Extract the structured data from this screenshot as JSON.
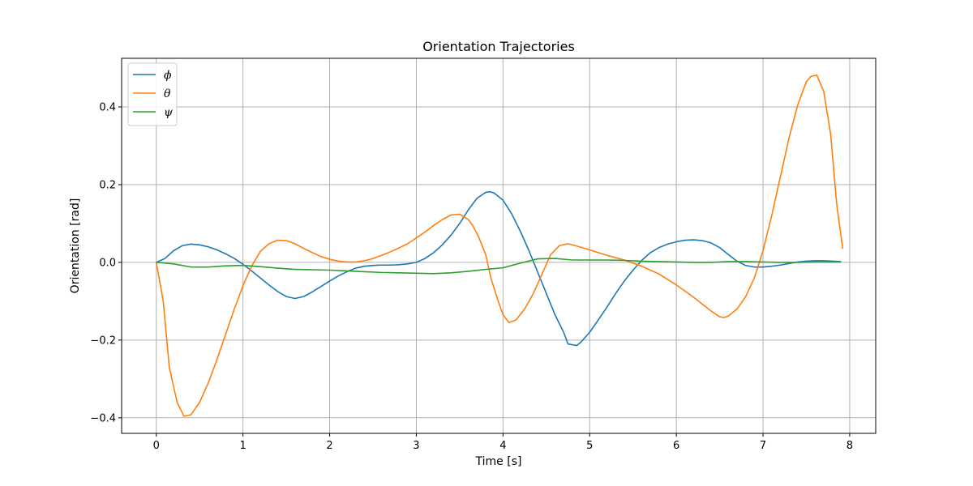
{
  "chart_data": {
    "type": "line",
    "title": "Orientation Trajectories",
    "xlabel": "Time [s]",
    "ylabel": "Orientation [rad]",
    "xlim": [
      -0.4,
      8.3
    ],
    "ylim": [
      -0.44,
      0.525
    ],
    "xticks": [
      0,
      1,
      2,
      3,
      4,
      5,
      6,
      7,
      8
    ],
    "xtick_labels": [
      "0",
      "1",
      "2",
      "3",
      "4",
      "5",
      "6",
      "7",
      "8"
    ],
    "yticks": [
      -0.4,
      -0.2,
      0.0,
      0.2,
      0.4
    ],
    "ytick_labels": [
      "−0.4",
      "−0.2",
      "0.0",
      "0.2",
      "0.4"
    ],
    "grid": true,
    "legend_position": "top-left",
    "series": [
      {
        "name": "ϕ",
        "color": "#1f77b4",
        "points": [
          [
            0,
            0
          ],
          [
            0.1,
            0.01
          ],
          [
            0.2,
            0.03
          ],
          [
            0.3,
            0.043
          ],
          [
            0.4,
            0.047
          ],
          [
            0.5,
            0.045
          ],
          [
            0.6,
            0.04
          ],
          [
            0.7,
            0.032
          ],
          [
            0.8,
            0.022
          ],
          [
            0.9,
            0.01
          ],
          [
            1.0,
            -0.005
          ],
          [
            1.1,
            -0.022
          ],
          [
            1.2,
            -0.04
          ],
          [
            1.3,
            -0.058
          ],
          [
            1.4,
            -0.075
          ],
          [
            1.5,
            -0.088
          ],
          [
            1.6,
            -0.093
          ],
          [
            1.7,
            -0.088
          ],
          [
            1.8,
            -0.076
          ],
          [
            1.9,
            -0.062
          ],
          [
            2.0,
            -0.048
          ],
          [
            2.1,
            -0.035
          ],
          [
            2.2,
            -0.024
          ],
          [
            2.3,
            -0.015
          ],
          [
            2.4,
            -0.01
          ],
          [
            2.5,
            -0.008
          ],
          [
            2.6,
            -0.007
          ],
          [
            2.7,
            -0.007
          ],
          [
            2.8,
            -0.006
          ],
          [
            2.9,
            -0.004
          ],
          [
            3.0,
            0.0
          ],
          [
            3.1,
            0.01
          ],
          [
            3.2,
            0.025
          ],
          [
            3.3,
            0.045
          ],
          [
            3.4,
            0.07
          ],
          [
            3.5,
            0.1
          ],
          [
            3.6,
            0.135
          ],
          [
            3.7,
            0.165
          ],
          [
            3.8,
            0.18
          ],
          [
            3.85,
            0.182
          ],
          [
            3.9,
            0.178
          ],
          [
            4.0,
            0.16
          ],
          [
            4.1,
            0.125
          ],
          [
            4.2,
            0.08
          ],
          [
            4.3,
            0.03
          ],
          [
            4.4,
            -0.025
          ],
          [
            4.5,
            -0.08
          ],
          [
            4.6,
            -0.135
          ],
          [
            4.7,
            -0.18
          ],
          [
            4.75,
            -0.21
          ],
          [
            4.85,
            -0.214
          ],
          [
            4.9,
            -0.205
          ],
          [
            5.0,
            -0.18
          ],
          [
            5.1,
            -0.148
          ],
          [
            5.2,
            -0.115
          ],
          [
            5.3,
            -0.08
          ],
          [
            5.4,
            -0.048
          ],
          [
            5.5,
            -0.02
          ],
          [
            5.6,
            0.005
          ],
          [
            5.7,
            0.025
          ],
          [
            5.8,
            0.038
          ],
          [
            5.9,
            0.047
          ],
          [
            6.0,
            0.053
          ],
          [
            6.1,
            0.057
          ],
          [
            6.2,
            0.058
          ],
          [
            6.3,
            0.056
          ],
          [
            6.4,
            0.05
          ],
          [
            6.5,
            0.038
          ],
          [
            6.6,
            0.02
          ],
          [
            6.7,
            0.003
          ],
          [
            6.8,
            -0.008
          ],
          [
            6.9,
            -0.012
          ],
          [
            7.0,
            -0.012
          ],
          [
            7.1,
            -0.01
          ],
          [
            7.2,
            -0.007
          ],
          [
            7.3,
            -0.003
          ],
          [
            7.4,
            0.001
          ],
          [
            7.5,
            0.003
          ],
          [
            7.6,
            0.004
          ],
          [
            7.7,
            0.004
          ],
          [
            7.8,
            0.003
          ],
          [
            7.9,
            0.002
          ]
        ]
      },
      {
        "name": "θ",
        "color": "#ff7f0e",
        "points": [
          [
            0,
            0
          ],
          [
            0.08,
            -0.1
          ],
          [
            0.15,
            -0.27
          ],
          [
            0.24,
            -0.36
          ],
          [
            0.32,
            -0.396
          ],
          [
            0.4,
            -0.392
          ],
          [
            0.5,
            -0.36
          ],
          [
            0.6,
            -0.31
          ],
          [
            0.7,
            -0.25
          ],
          [
            0.8,
            -0.185
          ],
          [
            0.9,
            -0.12
          ],
          [
            1.0,
            -0.06
          ],
          [
            1.1,
            -0.01
          ],
          [
            1.2,
            0.028
          ],
          [
            1.3,
            0.048
          ],
          [
            1.4,
            0.057
          ],
          [
            1.5,
            0.056
          ],
          [
            1.6,
            0.048
          ],
          [
            1.7,
            0.036
          ],
          [
            1.8,
            0.025
          ],
          [
            1.9,
            0.015
          ],
          [
            2.0,
            0.008
          ],
          [
            2.1,
            0.003
          ],
          [
            2.2,
            0.001
          ],
          [
            2.3,
            0.001
          ],
          [
            2.4,
            0.004
          ],
          [
            2.5,
            0.01
          ],
          [
            2.6,
            0.018
          ],
          [
            2.7,
            0.027
          ],
          [
            2.8,
            0.037
          ],
          [
            2.9,
            0.048
          ],
          [
            3.0,
            0.063
          ],
          [
            3.1,
            0.078
          ],
          [
            3.2,
            0.095
          ],
          [
            3.3,
            0.11
          ],
          [
            3.4,
            0.122
          ],
          [
            3.5,
            0.124
          ],
          [
            3.6,
            0.11
          ],
          [
            3.65,
            0.095
          ],
          [
            3.72,
            0.065
          ],
          [
            3.8,
            0.02
          ],
          [
            3.86,
            -0.04
          ],
          [
            3.93,
            -0.09
          ],
          [
            4.0,
            -0.135
          ],
          [
            4.07,
            -0.155
          ],
          [
            4.15,
            -0.148
          ],
          [
            4.25,
            -0.12
          ],
          [
            4.35,
            -0.08
          ],
          [
            4.45,
            -0.03
          ],
          [
            4.55,
            0.02
          ],
          [
            4.65,
            0.043
          ],
          [
            4.75,
            0.048
          ],
          [
            4.85,
            0.042
          ],
          [
            5.0,
            0.032
          ],
          [
            5.2,
            0.018
          ],
          [
            5.4,
            0.006
          ],
          [
            5.6,
            -0.01
          ],
          [
            5.8,
            -0.03
          ],
          [
            6.0,
            -0.058
          ],
          [
            6.2,
            -0.09
          ],
          [
            6.4,
            -0.125
          ],
          [
            6.5,
            -0.14
          ],
          [
            6.55,
            -0.142
          ],
          [
            6.6,
            -0.138
          ],
          [
            6.7,
            -0.12
          ],
          [
            6.8,
            -0.088
          ],
          [
            6.9,
            -0.04
          ],
          [
            7.0,
            0.03
          ],
          [
            7.1,
            0.12
          ],
          [
            7.2,
            0.22
          ],
          [
            7.3,
            0.32
          ],
          [
            7.4,
            0.405
          ],
          [
            7.5,
            0.465
          ],
          [
            7.55,
            0.478
          ],
          [
            7.62,
            0.482
          ],
          [
            7.7,
            0.44
          ],
          [
            7.78,
            0.33
          ],
          [
            7.85,
            0.15
          ],
          [
            7.92,
            0.035
          ]
        ]
      },
      {
        "name": "ψ",
        "color": "#2ca02c",
        "points": [
          [
            0,
            0
          ],
          [
            0.2,
            -0.004
          ],
          [
            0.4,
            -0.012
          ],
          [
            0.6,
            -0.012
          ],
          [
            0.8,
            -0.009
          ],
          [
            1.0,
            -0.008
          ],
          [
            1.2,
            -0.011
          ],
          [
            1.4,
            -0.015
          ],
          [
            1.6,
            -0.018
          ],
          [
            1.8,
            -0.019
          ],
          [
            2.0,
            -0.02
          ],
          [
            2.2,
            -0.022
          ],
          [
            2.4,
            -0.024
          ],
          [
            2.6,
            -0.026
          ],
          [
            2.8,
            -0.027
          ],
          [
            3.0,
            -0.028
          ],
          [
            3.2,
            -0.029
          ],
          [
            3.4,
            -0.027
          ],
          [
            3.6,
            -0.023
          ],
          [
            3.8,
            -0.018
          ],
          [
            4.0,
            -0.014
          ],
          [
            4.2,
            -0.002
          ],
          [
            4.4,
            0.009
          ],
          [
            4.6,
            0.01
          ],
          [
            4.8,
            0.006
          ],
          [
            5.0,
            0.006
          ],
          [
            5.2,
            0.006
          ],
          [
            5.4,
            0.005
          ],
          [
            5.6,
            0.003
          ],
          [
            5.8,
            0.002
          ],
          [
            6.0,
            0.001
          ],
          [
            6.2,
            0.0
          ],
          [
            6.4,
            0.0
          ],
          [
            6.6,
            0.002
          ],
          [
            6.8,
            0.002
          ],
          [
            7.0,
            0.001
          ],
          [
            7.2,
            0.0
          ],
          [
            7.4,
            0.0
          ],
          [
            7.6,
            0.001
          ],
          [
            7.8,
            0.001
          ],
          [
            7.9,
            0.001
          ]
        ]
      }
    ]
  }
}
